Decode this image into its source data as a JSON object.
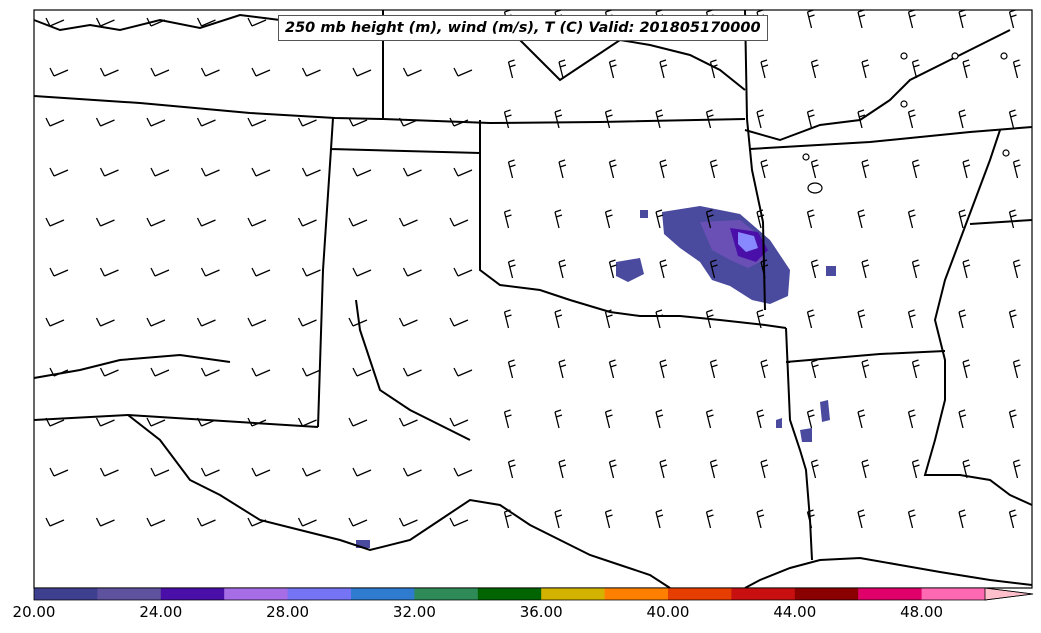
{
  "title": "250 mb height (m), wind (m/s), T (C) Valid: 201805170000",
  "colorbar": {
    "min": 20,
    "max": 52,
    "step": 2,
    "extend": "max",
    "tick_labels": [
      "20.00",
      "24.00",
      "28.00",
      "32.00",
      "36.00",
      "40.00",
      "44.00",
      "48.00"
    ],
    "tick_values": [
      20,
      24,
      28,
      32,
      36,
      40,
      44,
      48
    ],
    "colors": [
      "#3f3f8f",
      "#5e529f",
      "#4a0fa8",
      "#a66de6",
      "#7474f4",
      "#2f7bd0",
      "#2e8b57",
      "#006400",
      "#d4b300",
      "#ff8000",
      "#e53e00",
      "#c81010",
      "#8b0000",
      "#e0006a",
      "#ff69b4",
      "#ffc0cb"
    ]
  },
  "colors": {
    "outline": "#000000",
    "shading_low": "#4a4a9e",
    "shading_mid": "#6a50b5",
    "shading_core": "#4a0fa8",
    "shading_peak": "#8888ff"
  }
}
